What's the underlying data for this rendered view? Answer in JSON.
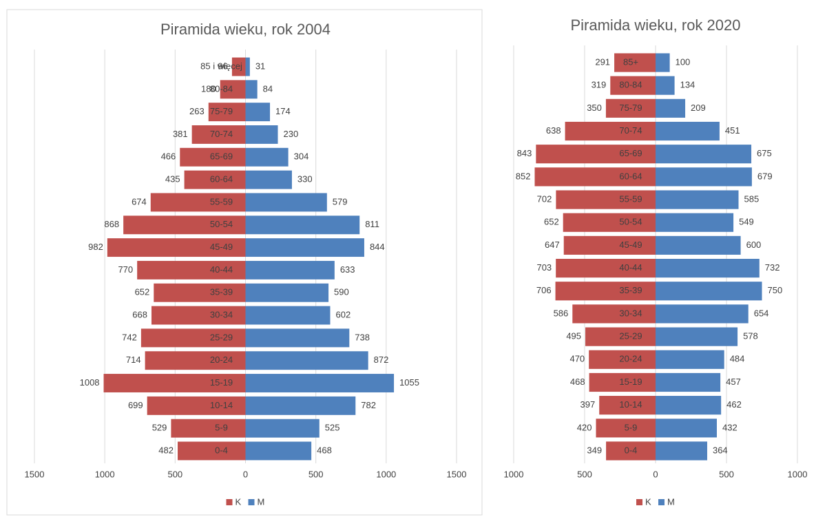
{
  "chart_data": [
    {
      "type": "pyramid",
      "title": "Piramida wieku, rok 2004",
      "categories": [
        "85 i więcej",
        "80-84",
        "75-79",
        "70-74",
        "65-69",
        "60-64",
        "55-59",
        "50-54",
        "45-49",
        "40-44",
        "35-39",
        "30-34",
        "25-29",
        "20-24",
        "15-19",
        "10-14",
        "5-9",
        "0-4"
      ],
      "series": [
        {
          "name": "K",
          "color": "#c0504d",
          "values": [
            96,
            180,
            263,
            381,
            466,
            435,
            674,
            868,
            982,
            770,
            652,
            668,
            742,
            714,
            1008,
            699,
            529,
            482
          ]
        },
        {
          "name": "M",
          "color": "#4f81bd",
          "values": [
            31,
            84,
            174,
            230,
            304,
            330,
            579,
            811,
            844,
            633,
            590,
            602,
            738,
            872,
            1055,
            782,
            525,
            468
          ]
        }
      ],
      "xlim": [
        -1500,
        1500
      ],
      "xticks": [
        {
          "value": -1500,
          "label": "1500"
        },
        {
          "value": -1000,
          "label": "1000"
        },
        {
          "value": -500,
          "label": "500"
        },
        0,
        500,
        1000,
        1500
      ],
      "grid": true,
      "legend": "bottom"
    },
    {
      "type": "pyramid",
      "title": "Piramida wieku, rok 2020",
      "categories": [
        "85+",
        "80-84",
        "75-79",
        "70-74",
        "65-69",
        "60-64",
        "55-59",
        "50-54",
        "45-49",
        "40-44",
        "35-39",
        "30-34",
        "25-29",
        "20-24",
        "15-19",
        "10-14",
        "5-9",
        "0-4"
      ],
      "series": [
        {
          "name": "K",
          "color": "#c0504d",
          "values": [
            291,
            319,
            350,
            638,
            843,
            852,
            702,
            652,
            647,
            703,
            706,
            586,
            495,
            470,
            468,
            397,
            420,
            349
          ]
        },
        {
          "name": "M",
          "color": "#4f81bd",
          "values": [
            100,
            134,
            209,
            451,
            675,
            679,
            585,
            549,
            600,
            732,
            750,
            654,
            578,
            484,
            457,
            462,
            432,
            364
          ]
        }
      ],
      "xlim": [
        -1000,
        1000
      ],
      "xticks": [
        {
          "value": -1000,
          "label": "1000"
        },
        {
          "value": -500,
          "label": "500"
        },
        0,
        500,
        1000
      ],
      "grid": true,
      "legend": "bottom"
    }
  ]
}
